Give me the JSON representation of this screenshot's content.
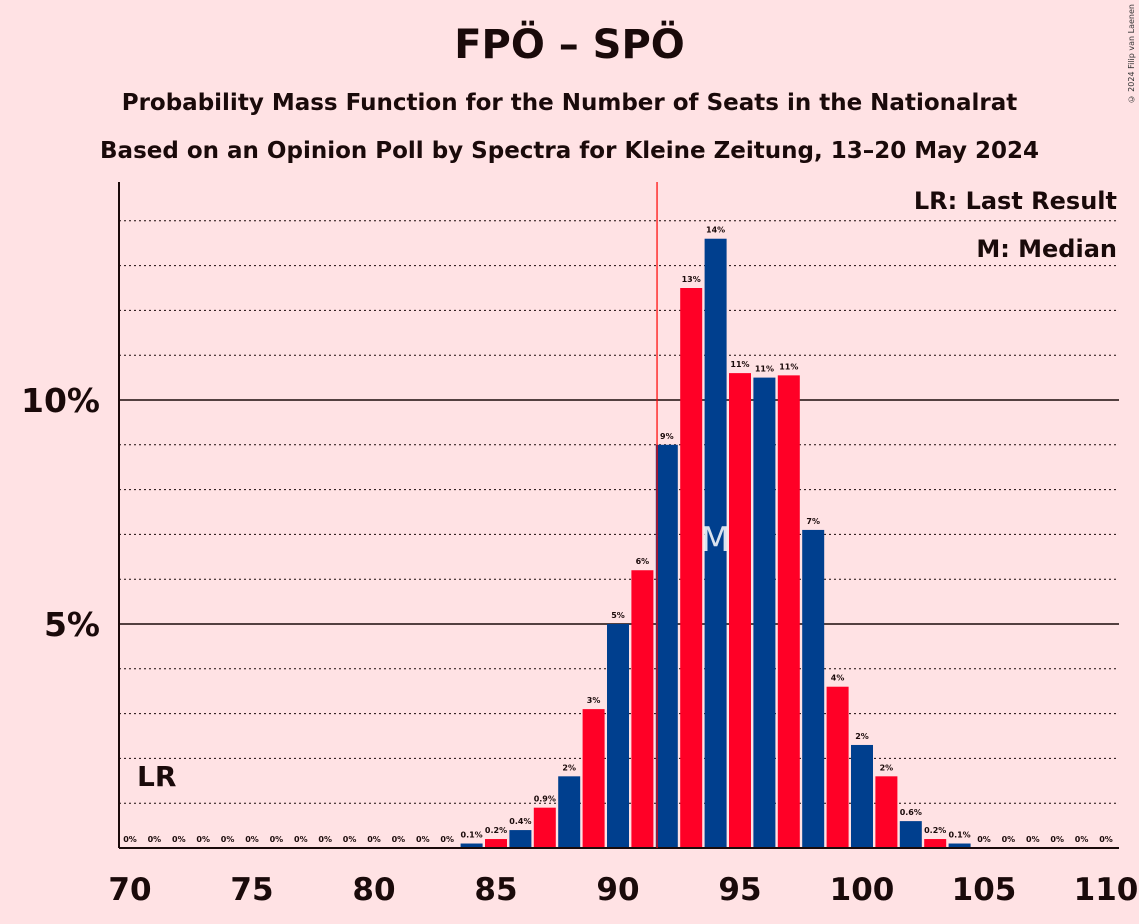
{
  "title": "FPÖ – SPÖ",
  "subtitle_1": "Probability Mass Function for the Number of Seats in the Nationalrat",
  "subtitle_2": "Based on an Opinion Poll by Spectra for Kleine Zeitung, 13–20 May 2024",
  "credit": "© 2024 Filip van Laenen",
  "colors": {
    "background": "#ffe2e4",
    "blue": "#003f8e",
    "red": "#ff0026",
    "last_result_line": "#ff0000"
  },
  "chart_data": {
    "type": "bar",
    "x": [
      70,
      71,
      72,
      73,
      74,
      75,
      76,
      77,
      78,
      79,
      80,
      81,
      82,
      83,
      84,
      85,
      86,
      87,
      88,
      89,
      90,
      91,
      92,
      93,
      94,
      95,
      96,
      97,
      98,
      99,
      100,
      101,
      102,
      103,
      104,
      105,
      106,
      107,
      108,
      109,
      110
    ],
    "values": [
      0,
      0,
      0,
      0,
      0,
      0,
      0,
      0,
      0,
      0,
      0,
      0,
      0,
      0,
      0.1,
      0.2,
      0.4,
      0.9,
      1.6,
      3.1,
      5.0,
      6.2,
      9.0,
      12.5,
      13.6,
      10.6,
      10.5,
      10.55,
      7.1,
      3.6,
      2.3,
      1.6,
      0.6,
      0.2,
      0.1,
      0,
      0,
      0,
      0,
      0,
      0
    ],
    "data_labels": [
      "0%",
      "0%",
      "0%",
      "0%",
      "0%",
      "0%",
      "0%",
      "0%",
      "0%",
      "0%",
      "0%",
      "0%",
      "0%",
      "0%",
      "0.1%",
      "0.2%",
      "0.4%",
      "0.9%",
      "2%",
      "3%",
      "5%",
      "6%",
      "9%",
      "13%",
      "14%",
      "11%",
      "11%",
      "11%",
      "7%",
      "4%",
      "2%",
      "2%",
      "0.6%",
      "0.2%",
      "0.1%",
      "0%",
      "0%",
      "0%",
      "0%",
      "0%",
      "0%"
    ],
    "x_ticks": [
      70,
      75,
      80,
      85,
      90,
      95,
      100,
      105,
      110
    ],
    "x_tick_labels": [
      "70",
      "75",
      "80",
      "85",
      "90",
      "95",
      "100",
      "105",
      "110"
    ],
    "y_ticks": [
      5,
      10
    ],
    "y_tick_labels": [
      "5%",
      "10%"
    ],
    "ylim": [
      0,
      14.8
    ],
    "xlim": [
      70,
      110
    ],
    "last_result": 91.6,
    "last_result_label": "LR",
    "median": 94,
    "median_label": "M",
    "legend": [
      "LR: Last Result",
      "M: Median"
    ],
    "legend_position": "top-right",
    "grid": "dotted at every 1%, solid at 5% and 10%"
  }
}
